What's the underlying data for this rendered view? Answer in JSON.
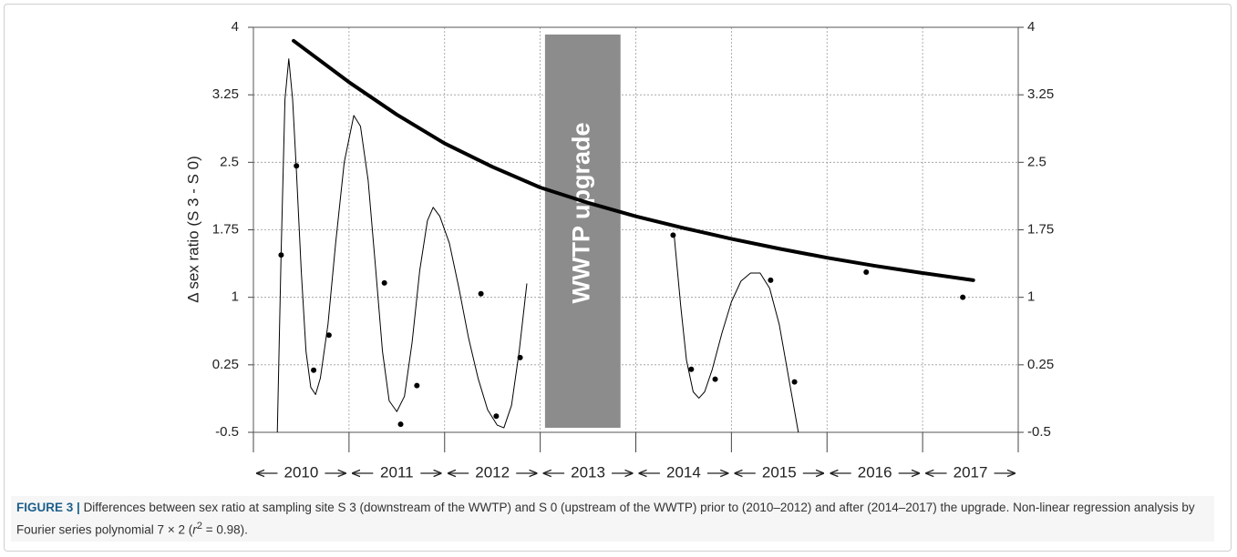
{
  "chart_data": {
    "type": "scatter",
    "y_label": "Δ sex ratio (S 3 - S 0)",
    "xlim": [
      2010,
      2018
    ],
    "ylim": [
      -0.5,
      4
    ],
    "yticks": [
      4,
      3.25,
      2.5,
      1.75,
      1,
      0.25,
      -0.5
    ],
    "grid": true,
    "categories": [
      "2010",
      "2011",
      "2012",
      "2013",
      "2014",
      "2015",
      "2016",
      "2017"
    ],
    "series": [
      {
        "type": "scatter",
        "color": "#000000",
        "x": [
          2010.29,
          2010.45,
          2010.63,
          2010.79,
          2011.37,
          2011.54,
          2011.71,
          2012.38,
          2012.54,
          2012.79,
          2014.39,
          2014.58,
          2014.83,
          2015.41,
          2015.66,
          2016.41,
          2017.42
        ],
        "values": [
          1.47,
          2.46,
          0.19,
          0.58,
          1.16,
          -0.41,
          0.02,
          1.04,
          -0.32,
          0.33,
          1.69,
          0.2,
          0.09,
          1.19,
          0.06,
          1.28,
          1.0
        ]
      },
      {
        "type": "line",
        "color": "#000000",
        "width": 1,
        "x": [
          2010.25,
          2010.29,
          2010.33,
          2010.37,
          2010.41,
          2010.45,
          2010.5,
          2010.55,
          2010.6,
          2010.65,
          2010.7,
          2010.78,
          2010.86,
          2010.95,
          2011.05,
          2011.12,
          2011.2,
          2011.28,
          2011.35,
          2011.42,
          2011.5,
          2011.58,
          2011.66,
          2011.74,
          2011.82,
          2011.88,
          2011.95,
          2012.05,
          2012.15,
          2012.25,
          2012.35,
          2012.45,
          2012.55,
          2012.62,
          2012.7,
          2012.78,
          2012.86,
          2013.6,
          2014.4,
          2014.47,
          2014.53,
          2014.6,
          2014.66,
          2014.72,
          2014.8,
          2014.9,
          2015.0,
          2015.1,
          2015.2,
          2015.3,
          2015.4,
          2015.5,
          2015.6,
          2015.7
        ],
        "values": [
          -0.5,
          1.5,
          3.2,
          3.65,
          3.2,
          2.4,
          1.3,
          0.4,
          0.0,
          -0.08,
          0.1,
          0.7,
          1.6,
          2.5,
          3.02,
          2.9,
          2.3,
          1.3,
          0.4,
          -0.15,
          -0.27,
          -0.1,
          0.5,
          1.3,
          1.85,
          2.0,
          1.9,
          1.6,
          1.1,
          0.55,
          0.1,
          -0.25,
          -0.42,
          -0.45,
          -0.2,
          0.4,
          1.15,
          null,
          1.7,
          0.9,
          0.3,
          -0.05,
          -0.12,
          -0.05,
          0.2,
          0.6,
          0.95,
          1.18,
          1.27,
          1.27,
          1.1,
          0.7,
          0.1,
          -0.5
        ]
      },
      {
        "type": "line",
        "color": "#000000",
        "width": 4,
        "x": [
          2010.42,
          2011,
          2011.5,
          2012,
          2012.5,
          2013,
          2013.5,
          2014,
          2014.5,
          2015,
          2015.5,
          2016,
          2016.5,
          2017,
          2017.53
        ],
        "values": [
          3.85,
          3.39,
          3.03,
          2.71,
          2.45,
          2.22,
          2.05,
          1.9,
          1.77,
          1.65,
          1.54,
          1.44,
          1.35,
          1.27,
          1.19
        ]
      }
    ],
    "shaded_region": {
      "x": [
        2013.05,
        2013.84
      ],
      "y": [
        -0.45,
        3.92
      ],
      "label": "WWTP upgrade",
      "color": "#8c8c8c"
    }
  },
  "caption": {
    "label": "FIGURE 3 |",
    "text_before": "Differences between sex ratio at sampling site S 3 (downstream of the WWTP) and S 0 (upstream of the WWTP) prior to (2010–2012) and after (2014–2017) the upgrade. Non-linear regression analysis by Fourier series polynomial 7 × 2 (",
    "r": "r",
    "exponent": "2",
    "text_after": " = 0.98)."
  }
}
